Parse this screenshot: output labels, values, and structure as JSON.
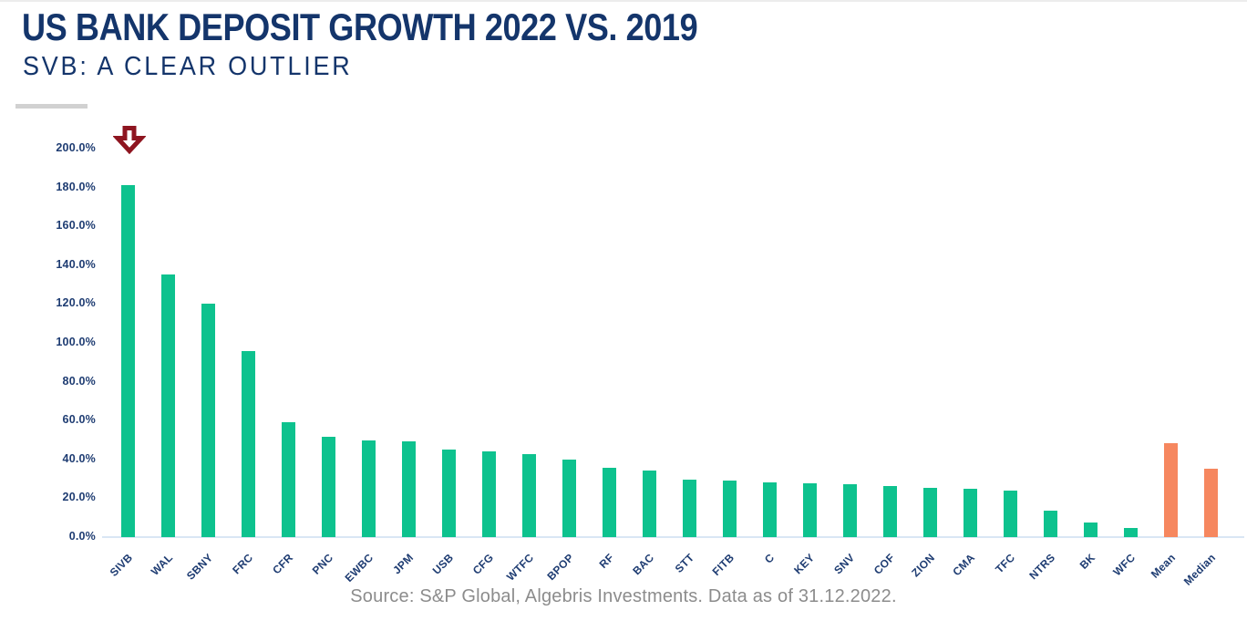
{
  "header": {
    "title": "US BANK DEPOSIT GROWTH 2022 VS. 2019",
    "subtitle": "SVB: A CLEAR OUTLIER"
  },
  "footer": {
    "source": "Source:  S&P Global, Algebris Investments. Data as of 31.12.2022."
  },
  "colors": {
    "title_navy": "#14356B",
    "axis_navy": "#1E3C72",
    "bar_green": "#0DC28E",
    "bar_orange": "#F6875F",
    "arrow_red": "#8E1520",
    "baseline_blue": "#D9E6F4",
    "accent_gray": "#D1D1D1",
    "source_gray": "#8C8C8C"
  },
  "chart_data": {
    "type": "bar",
    "title": "US BANK DEPOSIT GROWTH 2022 VS. 2019",
    "subtitle": "SVB: A CLEAR OUTLIER",
    "categories": [
      "SIVB",
      "WAL",
      "SBNY",
      "FRC",
      "CFR",
      "PNC",
      "EWBC",
      "JPM",
      "USB",
      "CFG",
      "WTFC",
      "BPOP",
      "RF",
      "BAC",
      "STT",
      "FITB",
      "C",
      "KEY",
      "SNV",
      "COF",
      "ZION",
      "CMA",
      "TFC",
      "NTRS",
      "BK",
      "WFC",
      "Mean",
      "Median"
    ],
    "values": [
      181,
      135,
      120,
      96,
      59,
      51.5,
      50,
      49.5,
      45,
      44,
      42.5,
      40,
      35.5,
      34.5,
      29.5,
      29,
      28,
      27.5,
      27,
      26.5,
      25.5,
      25,
      24,
      13.5,
      7.5,
      4.5,
      48.5,
      35
    ],
    "unit": "%",
    "summary_categories": [
      "Mean",
      "Median"
    ],
    "ylim": [
      0,
      200
    ],
    "ytick_step": 20,
    "yticks": [
      {
        "value": 0,
        "label": "0.0%"
      },
      {
        "value": 20,
        "label": "20.0%"
      },
      {
        "value": 40,
        "label": "40.0%"
      },
      {
        "value": 60,
        "label": "60.0%"
      },
      {
        "value": 80,
        "label": "80.0%"
      },
      {
        "value": 100,
        "label": "100.0%"
      },
      {
        "value": 120,
        "label": "120.0%"
      },
      {
        "value": 140,
        "label": "140.0%"
      },
      {
        "value": 160,
        "label": "160.0%"
      },
      {
        "value": 180,
        "label": "180.0%"
      },
      {
        "value": 200,
        "label": "200.0%"
      }
    ],
    "annotation": {
      "shape": "down-arrow",
      "target": "SIVB"
    },
    "grid": false,
    "legend": false,
    "xlabel": "",
    "ylabel": ""
  }
}
